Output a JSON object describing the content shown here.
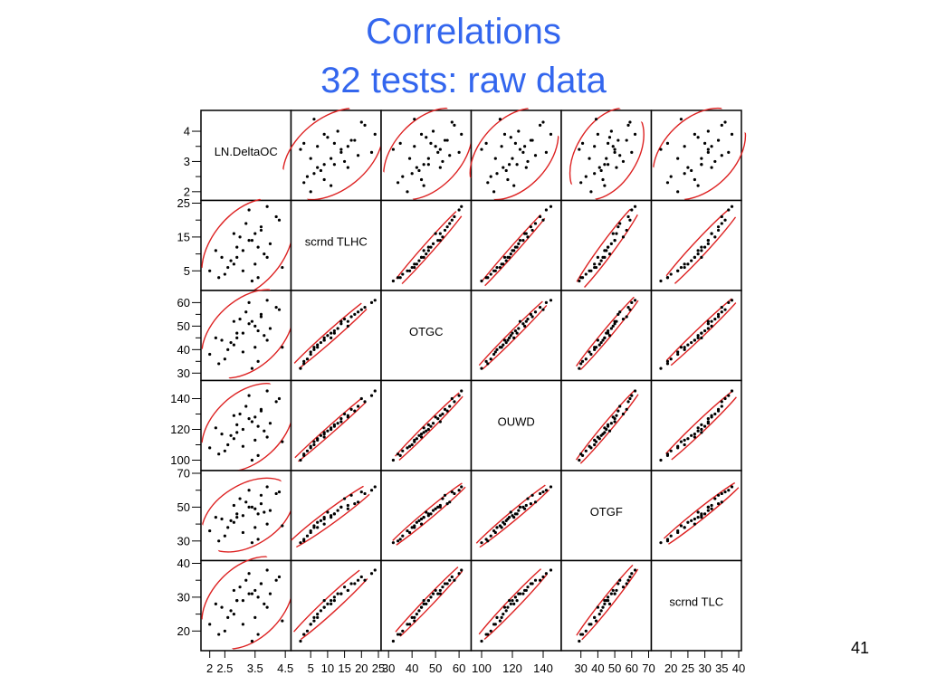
{
  "slide": {
    "title_line1": "Correlations",
    "title_line2": "32 tests: raw data",
    "page_number": "41",
    "title_color": "#3366ee",
    "ellipse_color": "#dd2222"
  },
  "chart_data": {
    "type": "scatter-matrix",
    "variables": [
      {
        "name": "LN.DeltaOC",
        "range": [
          1.8,
          4.6
        ],
        "ticks": [
          2,
          3,
          4
        ],
        "xticks": [
          2,
          2.5,
          3.5,
          4.5
        ],
        "xtick_labels": [
          "2",
          "2.5",
          "3.5",
          "4.5"
        ]
      },
      {
        "name": "scrnd TLHC",
        "range": [
          0,
          25
        ],
        "ticks": [
          5,
          15,
          25
        ],
        "xticks": [
          5,
          10,
          15,
          20,
          25
        ],
        "xtick_labels": [
          "5",
          "10",
          "15",
          "20",
          "25"
        ]
      },
      {
        "name": "OTGC",
        "range": [
          28,
          64
        ],
        "ticks": [
          30,
          40,
          50,
          60
        ],
        "xticks": [
          30,
          40,
          50,
          60
        ],
        "xtick_labels": [
          "30",
          "40",
          "50",
          "60"
        ]
      },
      {
        "name": "OUWD",
        "range": [
          95,
          150
        ],
        "ticks": [
          100,
          120,
          140
        ],
        "xticks": [
          100,
          120,
          140
        ],
        "xtick_labels": [
          "100",
          "120",
          "140"
        ]
      },
      {
        "name": "OTGF",
        "range": [
          20,
          70
        ],
        "ticks": [
          30,
          50,
          70
        ],
        "xticks": [
          30,
          40,
          50,
          60,
          70
        ],
        "xtick_labels": [
          "30",
          "40",
          "50",
          "60",
          "70"
        ]
      },
      {
        "name": "scrnd TLC",
        "range": [
          15,
          40
        ],
        "ticks": [
          20,
          30,
          40
        ],
        "xticks": [
          20,
          25,
          30,
          35,
          40
        ],
        "xtick_labels": [
          "20",
          "25",
          "30",
          "35",
          "40"
        ]
      }
    ],
    "observations": [
      [
        2.9,
        9,
        45,
        118,
        44,
        29
      ],
      [
        3.4,
        14,
        52,
        125,
        50,
        31
      ],
      [
        3.7,
        18,
        55,
        132,
        52,
        34
      ],
      [
        2.3,
        3,
        34,
        104,
        30,
        19
      ],
      [
        3.1,
        11,
        47,
        120,
        45,
        29
      ],
      [
        4.2,
        21,
        58,
        138,
        58,
        35
      ],
      [
        2.6,
        6,
        40,
        110,
        38,
        24
      ],
      [
        3.5,
        16,
        50,
        128,
        49,
        32
      ],
      [
        3.9,
        9,
        44,
        115,
        40,
        27
      ],
      [
        2.0,
        5,
        38,
        108,
        36,
        22
      ],
      [
        3.3,
        23,
        60,
        142,
        60,
        37
      ],
      [
        2.8,
        7,
        42,
        114,
        41,
        25
      ],
      [
        3.6,
        12,
        48,
        122,
        46,
        30
      ],
      [
        4.4,
        6,
        41,
        112,
        39,
        23
      ],
      [
        3.0,
        15,
        53,
        130,
        55,
        33
      ],
      [
        2.5,
        4,
        36,
        106,
        33,
        20
      ],
      [
        3.8,
        10,
        46,
        119,
        47,
        28
      ],
      [
        3.2,
        19,
        56,
        135,
        53,
        35
      ],
      [
        2.7,
        8,
        43,
        116,
        42,
        26
      ],
      [
        4.0,
        13,
        49,
        124,
        48,
        31
      ],
      [
        3.4,
        2,
        32,
        100,
        29,
        17
      ],
      [
        2.2,
        11,
        45,
        121,
        44,
        28
      ],
      [
        3.7,
        17,
        54,
        133,
        57,
        34
      ],
      [
        3.1,
        5,
        39,
        109,
        35,
        22
      ],
      [
        4.3,
        20,
        57,
        140,
        59,
        36
      ],
      [
        2.9,
        12,
        47,
        123,
        46,
        29
      ],
      [
        3.5,
        7,
        41,
        113,
        38,
        24
      ],
      [
        3.9,
        24,
        61,
        145,
        62,
        38
      ],
      [
        2.4,
        9,
        44,
        117,
        43,
        27
      ],
      [
        3.3,
        14,
        51,
        127,
        50,
        31
      ],
      [
        3.6,
        3,
        35,
        103,
        31,
        19
      ],
      [
        2.8,
        16,
        52,
        129,
        51,
        32
      ]
    ],
    "ellipses": "95% density ellipse in every off-diagonal cell",
    "grid": false
  }
}
